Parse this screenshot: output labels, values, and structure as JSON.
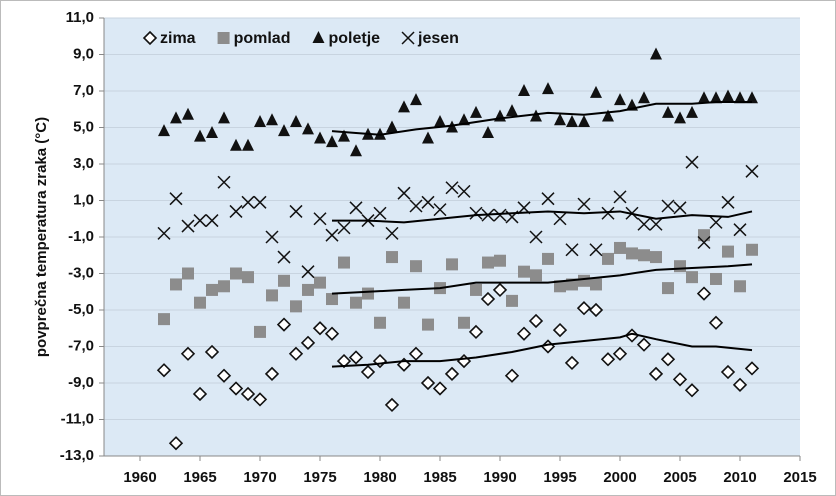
{
  "chart_data": {
    "type": "scatter",
    "y_label": "povprečna  temperatura zraka (°C)",
    "xlim": [
      1957,
      2015
    ],
    "xticks": [
      1960,
      1965,
      1970,
      1975,
      1980,
      1985,
      1990,
      1995,
      2000,
      2005,
      2010,
      2015
    ],
    "ylim": [
      -13,
      11
    ],
    "yticks": [
      {
        "value": 11,
        "label": "11,0"
      },
      {
        "value": 9,
        "label": "9,0"
      },
      {
        "value": 7,
        "label": "7,0"
      },
      {
        "value": 5,
        "label": "5,0"
      },
      {
        "value": 3,
        "label": "3,0"
      },
      {
        "value": 1,
        "label": "1,0"
      },
      {
        "value": -1,
        "label": "-1,0"
      },
      {
        "value": -3,
        "label": "-3,0"
      },
      {
        "value": -5,
        "label": "-5,0"
      },
      {
        "value": -7,
        "label": "-7,0"
      },
      {
        "value": -9,
        "label": "-9,0"
      },
      {
        "value": -11,
        "label": "-11,0"
      },
      {
        "value": -13,
        "label": "-13,0"
      }
    ],
    "grid": true,
    "legend": "upper left",
    "x": [
      1962,
      1963,
      1964,
      1965,
      1966,
      1967,
      1968,
      1969,
      1970,
      1971,
      1972,
      1973,
      1974,
      1975,
      1976,
      1977,
      1978,
      1979,
      1980,
      1981,
      1982,
      1983,
      1984,
      1985,
      1986,
      1987,
      1988,
      1989,
      1990,
      1991,
      1992,
      1993,
      1994,
      1995,
      1996,
      1997,
      1998,
      1999,
      2000,
      2001,
      2002,
      2003,
      2004,
      2005,
      2006,
      2007,
      2008,
      2009,
      2010,
      2011
    ],
    "series": [
      {
        "name": "zima",
        "marker": "diamond",
        "color": "#111111",
        "values": [
          -8.3,
          -12.3,
          -7.4,
          -9.6,
          -7.3,
          -8.6,
          -9.3,
          -9.6,
          -9.9,
          -8.5,
          -5.8,
          -7.4,
          -6.8,
          -6.0,
          -6.3,
          -7.8,
          -7.6,
          -8.4,
          -7.8,
          -10.2,
          -8.0,
          -7.4,
          -9.0,
          -9.3,
          -8.5,
          -7.8,
          -6.2,
          -4.4,
          -3.9,
          -8.6,
          -6.3,
          -5.6,
          -7.0,
          -6.1,
          -7.9,
          -4.9,
          -5.0,
          -7.7,
          -7.4,
          -6.4,
          -6.9,
          -8.5,
          -7.7,
          -8.8,
          -9.4,
          -4.1,
          -5.7,
          -8.4,
          -9.1,
          -8.2
        ],
        "trend": {
          "x": [
            1976,
            1979,
            1982,
            1985,
            1988,
            1991,
            1994,
            1997,
            2000,
            2001,
            2003,
            2006,
            2008,
            2011
          ],
          "values": [
            -8.1,
            -8.0,
            -7.8,
            -7.8,
            -7.6,
            -7.3,
            -6.9,
            -6.7,
            -6.5,
            -6.3,
            -6.6,
            -7.0,
            -7.0,
            -7.2
          ]
        }
      },
      {
        "name": "pomlad",
        "marker": "square",
        "color": "#8c8c8c",
        "values": [
          -5.5,
          -3.6,
          -3.0,
          -4.6,
          -3.9,
          -3.7,
          -3.0,
          -3.2,
          -6.2,
          -4.2,
          -3.4,
          -4.8,
          -3.9,
          -3.5,
          -4.4,
          -2.4,
          -4.6,
          -4.1,
          -5.7,
          -2.1,
          -4.6,
          -2.6,
          -5.8,
          -3.8,
          -2.5,
          -5.7,
          -3.9,
          -2.4,
          -2.3,
          -4.5,
          -2.9,
          -3.1,
          -2.2,
          -3.7,
          -3.6,
          -3.4,
          -3.6,
          -2.2,
          -1.6,
          -1.9,
          -2.0,
          -2.1,
          -3.8,
          -2.6,
          -3.2,
          -0.9,
          -3.3,
          -1.8,
          -3.7,
          -1.7
        ],
        "trend": {
          "x": [
            1976,
            1979,
            1982,
            1985,
            1988,
            1991,
            1994,
            1997,
            2000,
            2003,
            2006,
            2009,
            2011
          ],
          "values": [
            -4.1,
            -4.0,
            -3.9,
            -3.8,
            -3.5,
            -3.5,
            -3.5,
            -3.3,
            -3.1,
            -2.8,
            -2.7,
            -2.6,
            -2.5
          ]
        }
      },
      {
        "name": "poletje",
        "marker": "triangle",
        "color": "#111111",
        "values": [
          4.8,
          5.5,
          5.7,
          4.5,
          4.7,
          5.5,
          4.0,
          4.0,
          5.3,
          5.4,
          4.8,
          5.3,
          4.9,
          4.4,
          4.2,
          4.5,
          3.7,
          4.6,
          4.6,
          5.0,
          6.1,
          6.5,
          4.4,
          5.3,
          5.0,
          5.4,
          5.8,
          4.7,
          5.6,
          5.9,
          7.0,
          5.6,
          7.1,
          5.4,
          5.3,
          5.3,
          6.9,
          5.6,
          6.5,
          6.2,
          6.6,
          9.0,
          5.8,
          5.5,
          5.8,
          6.6,
          6.6,
          6.7,
          6.6,
          6.6
        ],
        "trend": {
          "x": [
            1976,
            1978,
            1980,
            1983,
            1986,
            1990,
            1994,
            1997,
            2000,
            2003,
            2006,
            2008,
            2011
          ],
          "values": [
            4.8,
            4.7,
            4.6,
            4.9,
            5.1,
            5.5,
            5.8,
            5.7,
            5.9,
            6.3,
            6.3,
            6.4,
            6.4
          ]
        }
      },
      {
        "name": "jesen",
        "marker": "cross",
        "color": "#111111",
        "values": [
          -0.8,
          1.1,
          -0.4,
          -0.1,
          -0.1,
          2.0,
          0.4,
          0.9,
          0.9,
          -1.0,
          -2.1,
          0.4,
          -2.9,
          0.0,
          -0.9,
          -0.5,
          0.6,
          -0.1,
          0.3,
          -0.8,
          1.4,
          0.7,
          0.9,
          0.5,
          1.7,
          1.5,
          0.3,
          0.2,
          0.2,
          0.1,
          0.6,
          -1.0,
          1.1,
          0.0,
          -1.7,
          0.8,
          -1.7,
          0.3,
          1.2,
          0.3,
          -0.3,
          -0.3,
          0.7,
          0.6,
          3.1,
          -1.3,
          -0.2,
          0.9,
          -0.6,
          2.6
        ],
        "trend": {
          "x": [
            1976,
            1979,
            1982,
            1985,
            1988,
            1991,
            1994,
            1997,
            2000,
            2003,
            2006,
            2009,
            2011
          ],
          "values": [
            -0.1,
            -0.1,
            -0.2,
            0.0,
            0.2,
            0.3,
            0.4,
            0.3,
            0.4,
            0.0,
            0.2,
            0.1,
            0.4
          ]
        }
      }
    ]
  }
}
